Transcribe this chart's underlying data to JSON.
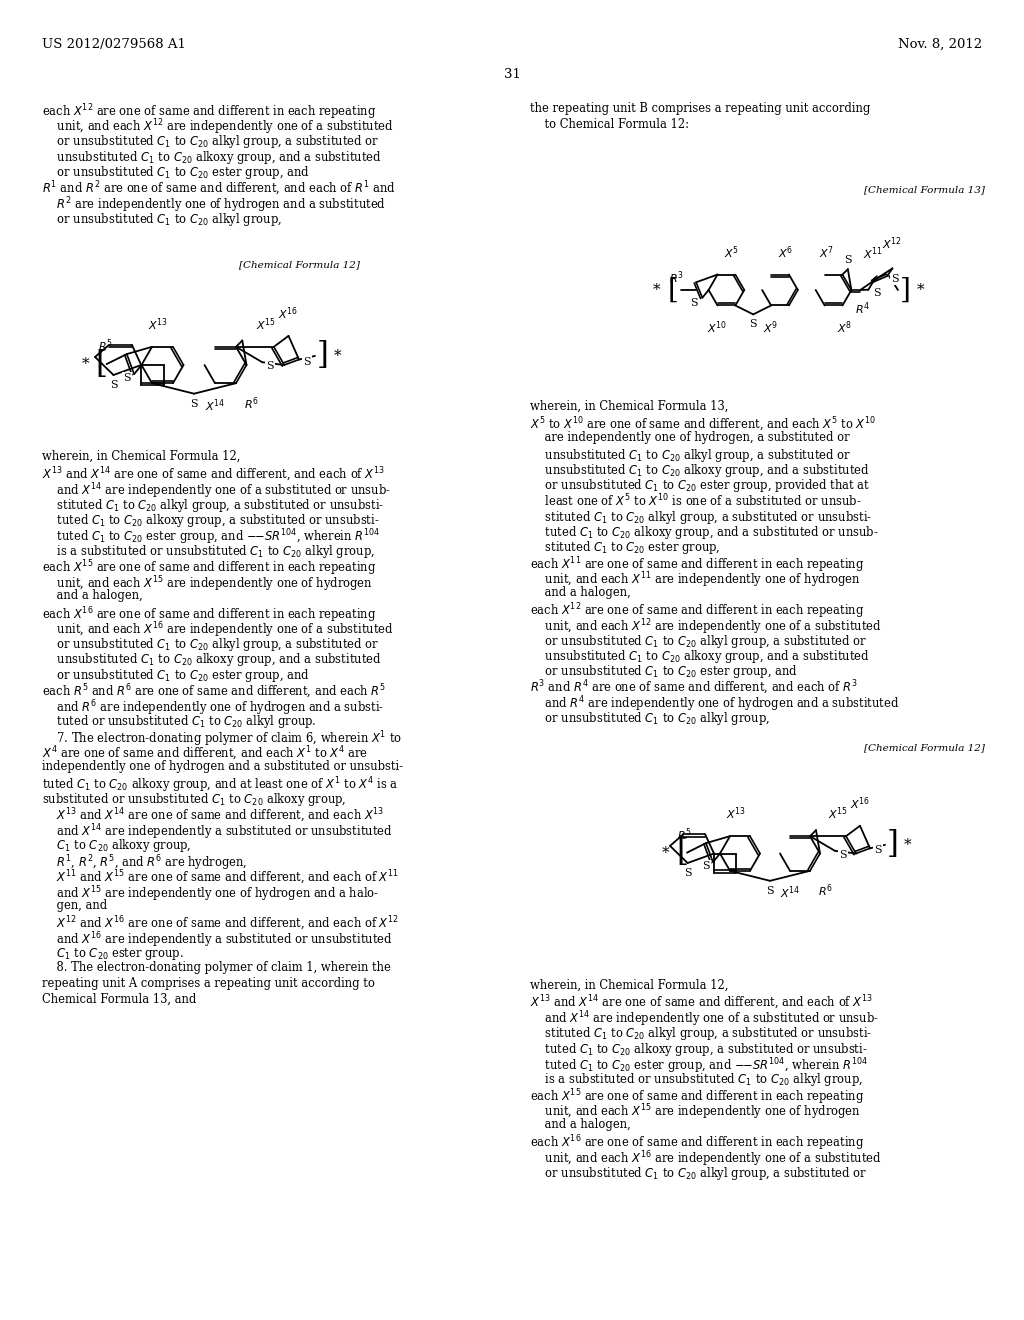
{
  "page_number": "31",
  "header_left": "US 2012/0279568 A1",
  "header_right": "Nov. 8, 2012",
  "bg": "#ffffff"
}
